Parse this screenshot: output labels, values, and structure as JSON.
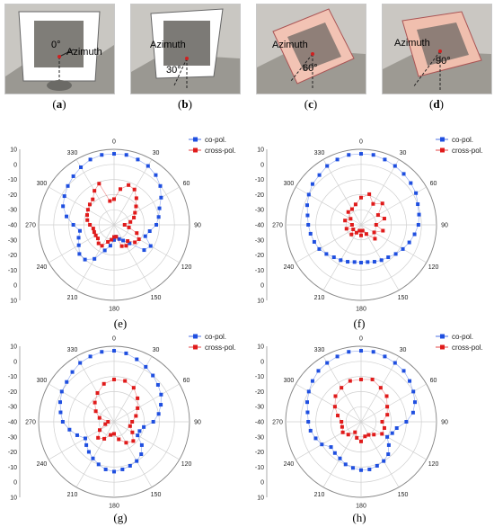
{
  "photos": [
    {
      "angle_label": "0°",
      "azimuth_label": "Azimuth",
      "caption_letter": "a",
      "board": "white",
      "tilt": 0
    },
    {
      "angle_label": "30°",
      "azimuth_label": "Azimuth",
      "caption_letter": "b",
      "board": "white",
      "tilt": 30
    },
    {
      "angle_label": "60°",
      "azimuth_label": "Azimuth",
      "caption_letter": "c",
      "board": "pink",
      "tilt": 60
    },
    {
      "angle_label": "90°",
      "azimuth_label": "Azimuth",
      "caption_letter": "d",
      "board": "pink",
      "tilt": 90
    }
  ],
  "colors": {
    "co": "#1f4fe0",
    "cross": "#e01b1b",
    "grid": "#cfcfcf"
  },
  "chart_data": [
    {
      "type": "polar",
      "caption_letter": "e",
      "angle_ticks": [
        "0",
        "30",
        "60",
        "90",
        "120",
        "150",
        "180",
        "210",
        "240",
        "270",
        "300",
        "330"
      ],
      "radial_ticks": [
        "10",
        "0",
        "-10",
        "-20",
        "-30",
        "-40",
        "-30",
        "-20",
        "-10",
        "0",
        "10"
      ],
      "rlim": [
        -40,
        10
      ],
      "legend": [
        "co-pol.",
        "cross-pol."
      ],
      "series": [
        {
          "name": "co-pol.",
          "theta": [
            0,
            10,
            20,
            30,
            40,
            50,
            60,
            70,
            80,
            90,
            100,
            110,
            120,
            130,
            140,
            150,
            160,
            170,
            180,
            190,
            200,
            210,
            220,
            230,
            240,
            250,
            260,
            270,
            280,
            290,
            300,
            310,
            320,
            330,
            340,
            350
          ],
          "r": [
            7,
            7,
            6,
            5,
            3,
            0,
            -4,
            -8,
            -10,
            -12,
            -16,
            -18,
            -12,
            -14,
            -24,
            -28,
            -30,
            -32,
            -30,
            -26,
            -22,
            -14,
            -10,
            -10,
            -13,
            -15,
            -17,
            -13,
            -8,
            -4,
            -2,
            0,
            2,
            4,
            6,
            7
          ]
        },
        {
          "name": "cross-pol.",
          "theta": [
            0,
            10,
            20,
            30,
            40,
            50,
            60,
            70,
            80,
            90,
            100,
            110,
            120,
            130,
            140,
            150,
            160,
            170,
            180,
            190,
            200,
            210,
            220,
            230,
            240,
            250,
            260,
            270,
            280,
            290,
            300,
            310,
            320,
            330,
            340,
            350
          ],
          "r": [
            -23,
            -16,
            -12,
            -13,
            -17,
            -21,
            -24,
            -26,
            -29,
            -33,
            -30,
            -24,
            -21,
            -22,
            -26,
            -24,
            -25,
            -32,
            -32,
            -30,
            -28,
            -24,
            -24,
            -26,
            -26,
            -26,
            -26,
            -24,
            -22,
            -21,
            -20,
            -19,
            -18,
            -14,
            -11,
            -24
          ]
        }
      ]
    },
    {
      "type": "polar",
      "caption_letter": "f",
      "angle_ticks": [
        "0",
        "30",
        "60",
        "90",
        "120",
        "150",
        "180",
        "210",
        "240",
        "270",
        "300",
        "330"
      ],
      "radial_ticks": [
        "10",
        "0",
        "-10",
        "-20",
        "-30",
        "-40",
        "-30",
        "-20",
        "-10",
        "0",
        "10"
      ],
      "rlim": [
        -40,
        10
      ],
      "legend": [
        "co-pol.",
        "cross-pol."
      ],
      "series": [
        {
          "name": "co-pol.",
          "theta": [
            0,
            10,
            20,
            30,
            40,
            50,
            60,
            70,
            80,
            90,
            100,
            110,
            120,
            130,
            140,
            150,
            160,
            170,
            180,
            190,
            200,
            210,
            220,
            230,
            240,
            250,
            260,
            270,
            280,
            290,
            300,
            310,
            320,
            330,
            340,
            350
          ],
          "r": [
            7,
            7,
            6,
            5,
            4,
            3,
            2,
            0,
            -1,
            -2,
            -4,
            -6,
            -8,
            -10,
            -12,
            -13,
            -14,
            -15,
            -15,
            -15,
            -14,
            -13,
            -12,
            -10,
            -8,
            -7,
            -6,
            -5,
            -4,
            -2,
            0,
            2,
            3,
            5,
            6,
            7
          ]
        },
        {
          "name": "cross-pol.",
          "theta": [
            0,
            15,
            30,
            45,
            60,
            75,
            90,
            105,
            120,
            135,
            150,
            165,
            180,
            195,
            210,
            225,
            240,
            255,
            270,
            285,
            300,
            315,
            330,
            345
          ],
          "r": [
            -22,
            -19,
            -24,
            -20,
            -27,
            -24,
            -30,
            -25,
            -30,
            -27,
            -33,
            -36,
            -33,
            -36,
            -34,
            -31,
            -34,
            -30,
            -34,
            -29,
            -32,
            -28,
            -28,
            -26
          ]
        }
      ]
    },
    {
      "type": "polar",
      "caption_letter": "g",
      "angle_ticks": [
        "0",
        "30",
        "60",
        "90",
        "120",
        "150",
        "180",
        "210",
        "240",
        "270",
        "300",
        "330"
      ],
      "radial_ticks": [
        "10",
        "0",
        "-10",
        "-20",
        "-30",
        "-40",
        "-30",
        "-20",
        "-10",
        "0",
        "10"
      ],
      "rlim": [
        -40,
        10
      ],
      "legend": [
        "co-pol.",
        "cross-pol."
      ],
      "series": [
        {
          "name": "co-pol.",
          "theta": [
            0,
            10,
            20,
            30,
            40,
            50,
            60,
            70,
            80,
            90,
            100,
            110,
            120,
            130,
            140,
            150,
            160,
            170,
            180,
            190,
            200,
            210,
            220,
            230,
            240,
            250,
            260,
            270,
            280,
            290,
            300,
            310,
            320,
            330,
            340,
            350
          ],
          "r": [
            7,
            6,
            4,
            2,
            0,
            -2,
            -4,
            -7,
            -10,
            -14,
            -20,
            -22,
            -22,
            -16,
            -12,
            -10,
            -9,
            -8,
            -7,
            -8,
            -10,
            -12,
            -14,
            -16,
            -18,
            -14,
            -10,
            -6,
            -4,
            -2,
            0,
            1,
            3,
            5,
            6,
            7
          ]
        },
        {
          "name": "cross-pol.",
          "theta": [
            0,
            15,
            30,
            45,
            60,
            75,
            90,
            105,
            120,
            135,
            150,
            165,
            180,
            195,
            210,
            225,
            240,
            255,
            270,
            285,
            300,
            315,
            330,
            345
          ],
          "r": [
            -12,
            -12,
            -14,
            -18,
            -22,
            -25,
            -28,
            -29,
            -26,
            -22,
            -24,
            -28,
            -32,
            -31,
            -27,
            -25,
            -29,
            -34,
            -36,
            -30,
            -26,
            -22,
            -18,
            -14
          ]
        }
      ]
    },
    {
      "type": "polar",
      "caption_letter": "h",
      "angle_ticks": [
        "0",
        "30",
        "60",
        "90",
        "120",
        "150",
        "180",
        "210",
        "240",
        "270",
        "300",
        "330"
      ],
      "radial_ticks": [
        "10",
        "0",
        "-10",
        "-20",
        "-30",
        "-40",
        "-30",
        "-20",
        "-10",
        "0",
        "10"
      ],
      "rlim": [
        -40,
        10
      ],
      "legend": [
        "co-pol.",
        "cross-pol."
      ],
      "series": [
        {
          "name": "co-pol.",
          "theta": [
            0,
            10,
            20,
            30,
            40,
            50,
            60,
            70,
            80,
            90,
            100,
            110,
            120,
            130,
            140,
            150,
            160,
            170,
            180,
            190,
            200,
            210,
            220,
            230,
            240,
            250,
            260,
            270,
            280,
            290,
            300,
            310,
            320,
            330,
            340,
            350
          ],
          "r": [
            7,
            7,
            6,
            5,
            4,
            2,
            0,
            -2,
            -5,
            -10,
            -16,
            -18,
            -20,
            -16,
            -12,
            -10,
            -9,
            -8,
            -8,
            -9,
            -10,
            -12,
            -13,
            -14,
            -10,
            -8,
            -6,
            -5,
            -4,
            -2,
            0,
            2,
            4,
            5,
            6,
            7
          ]
        },
        {
          "name": "cross-pol.",
          "theta": [
            0,
            15,
            30,
            45,
            60,
            75,
            90,
            105,
            120,
            135,
            150,
            165,
            180,
            195,
            210,
            225,
            240,
            255,
            270,
            285,
            300,
            315,
            330,
            345
          ],
          "r": [
            -12,
            -11,
            -14,
            -16,
            -20,
            -22,
            -26,
            -24,
            -24,
            -28,
            -30,
            -30,
            -27,
            -29,
            -32,
            -28,
            -26,
            -27,
            -27,
            -24,
            -20,
            -16,
            -14,
            -12
          ]
        }
      ]
    }
  ]
}
